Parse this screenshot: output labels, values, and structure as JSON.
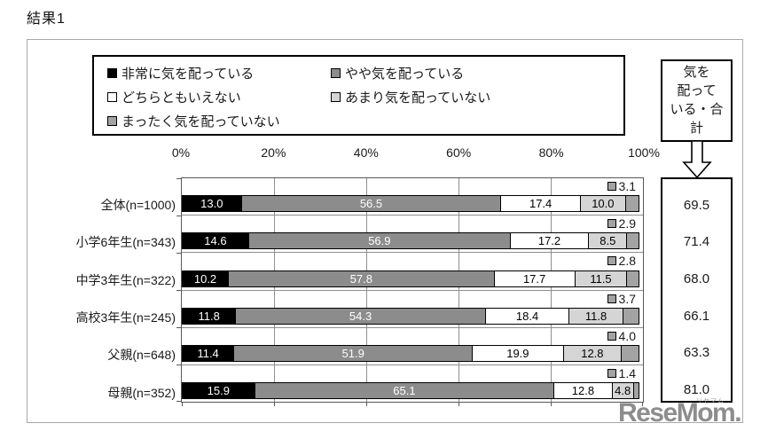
{
  "page": {
    "title": "結果1",
    "watermark": {
      "text": "ReseMom.",
      "ruby": "リセマム"
    }
  },
  "total_box": {
    "header_lines": [
      "気を",
      "配って",
      "いる・合",
      "計"
    ],
    "header_text": "気を配っている・合計"
  },
  "legend": [
    {
      "label": "非常に気を配っている",
      "color": "#000000"
    },
    {
      "label": "やや気を配っている",
      "color": "#8c8c8c"
    },
    {
      "label": "どちらともいえない",
      "color": "#ffffff"
    },
    {
      "label": "あまり気を配っていない",
      "color": "#d5d5d5"
    },
    {
      "label": "まったく気を配っていない",
      "color": "#a3a3a3"
    }
  ],
  "chart_data": {
    "type": "bar",
    "stacked": true,
    "orientation": "horizontal",
    "xlim": [
      0,
      100
    ],
    "x_tick_labels": [
      "0%",
      "20%",
      "40%",
      "60%",
      "80%",
      "100%"
    ],
    "x_ticks": [
      0,
      20,
      40,
      60,
      80,
      100
    ],
    "grid": true,
    "legend_position": "top",
    "categories": [
      "全体(n=1000)",
      "小学6年生(n=343)",
      "中学3年生(n=322)",
      "高校3年生(n=245)",
      "父親(n=648)",
      "母親(n=352)"
    ],
    "series": [
      {
        "name": "非常に気を配っている",
        "color": "#000000",
        "label_color": "#ffffff",
        "values": [
          13.0,
          14.6,
          10.2,
          11.8,
          11.4,
          15.9
        ]
      },
      {
        "name": "やや気を配っている",
        "color": "#8c8c8c",
        "label_color": "#ffffff",
        "values": [
          56.5,
          56.9,
          57.8,
          54.3,
          51.9,
          65.1
        ]
      },
      {
        "name": "どちらともいえない",
        "color": "#ffffff",
        "label_color": "#000000",
        "values": [
          17.4,
          17.2,
          17.7,
          18.4,
          19.9,
          12.8
        ]
      },
      {
        "name": "あまり気を配っていない",
        "color": "#d5d5d5",
        "label_color": "#000000",
        "values": [
          10.0,
          8.5,
          11.5,
          11.8,
          12.8,
          4.8
        ]
      },
      {
        "name": "まったく気を配っていない",
        "color": "#a3a3a3",
        "label_color": null,
        "values": [
          3.1,
          2.9,
          2.8,
          3.7,
          4.0,
          1.4
        ],
        "label_outside": true
      }
    ],
    "totals": [
      69.5,
      71.4,
      68.0,
      66.1,
      63.3,
      81.0
    ]
  }
}
